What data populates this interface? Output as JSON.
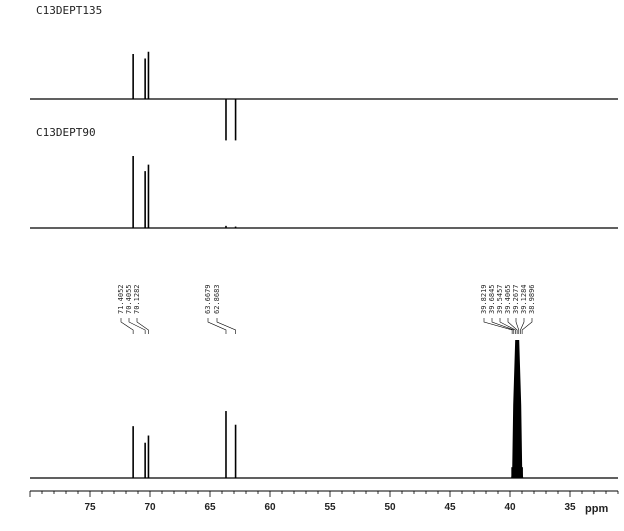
{
  "chart_data": [
    {
      "type": "line",
      "title": "C13DEPT135",
      "xlim": [
        80,
        31
      ],
      "peaks": [
        {
          "x": 71.4052,
          "y": 1.0
        },
        {
          "x": 70.4055,
          "y": 0.9
        },
        {
          "x": 70.1282,
          "y": 1.05
        },
        {
          "x": 63.6679,
          "y": -0.92
        },
        {
          "x": 62.8683,
          "y": -0.92
        }
      ]
    },
    {
      "type": "line",
      "title": "C13DEPT90",
      "xlim": [
        80,
        31
      ],
      "peaks": [
        {
          "x": 71.4052,
          "y": 1.0
        },
        {
          "x": 70.4055,
          "y": 0.79
        },
        {
          "x": 70.1282,
          "y": 0.88
        },
        {
          "x": 63.6679,
          "y": 0.03
        },
        {
          "x": 62.8683,
          "y": 0.02
        }
      ]
    },
    {
      "type": "line",
      "title": "",
      "xlabel": "ppm",
      "xlim": [
        80,
        31
      ],
      "x_ticks": [
        75,
        70,
        65,
        60,
        55,
        50,
        45,
        40,
        35
      ],
      "peak_labels": [
        "71.4052",
        "70.4055",
        "70.1282",
        "63.6679",
        "62.8683",
        "39.8219",
        "39.6845",
        "39.5457",
        "39.4065",
        "39.2677",
        "39.1284",
        "38.9896"
      ],
      "peaks": [
        {
          "x": 71.4052,
          "y": 0.72
        },
        {
          "x": 70.4055,
          "y": 0.49
        },
        {
          "x": 70.1282,
          "y": 0.59
        },
        {
          "x": 63.6679,
          "y": 0.93
        },
        {
          "x": 62.8683,
          "y": 0.74
        },
        {
          "x": 39.8219,
          "y": 0.15
        },
        {
          "x": 39.6845,
          "y": 0.6
        },
        {
          "x": 39.5457,
          "y": 1.2
        },
        {
          "x": 39.4065,
          "y": 1.25
        },
        {
          "x": 39.2677,
          "y": 1.2
        },
        {
          "x": 39.1284,
          "y": 0.6
        },
        {
          "x": 38.9896,
          "y": 0.15
        }
      ]
    }
  ]
}
